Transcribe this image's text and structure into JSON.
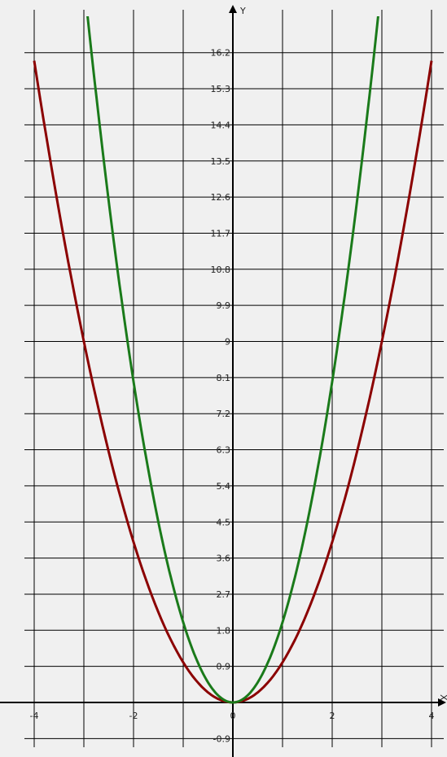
{
  "chart_data": {
    "type": "line",
    "title": "",
    "xlabel": "X",
    "ylabel": "Y",
    "xlim": [
      -4.1,
      4.2
    ],
    "ylim": [
      -1.1,
      17.2
    ],
    "grid": true,
    "x_ticks": [
      {
        "value": -4,
        "label": "-4"
      },
      {
        "value": -2,
        "label": "-2"
      },
      {
        "value": 0,
        "label": "0"
      },
      {
        "value": 2,
        "label": "2"
      },
      {
        "value": 4,
        "label": "4"
      }
    ],
    "y_ticks": [
      {
        "value": -0.9,
        "label": "-0.9"
      },
      {
        "value": 0.9,
        "label": "0.9"
      },
      {
        "value": 1.8,
        "label": "1.8"
      },
      {
        "value": 2.7,
        "label": "2.7"
      },
      {
        "value": 3.6,
        "label": "3.6"
      },
      {
        "value": 4.5,
        "label": "4.5"
      },
      {
        "value": 5.4,
        "label": "5.4"
      },
      {
        "value": 6.3,
        "label": "6.3"
      },
      {
        "value": 7.2,
        "label": "7.2"
      },
      {
        "value": 8.1,
        "label": "8.1"
      },
      {
        "value": 9,
        "label": "9"
      },
      {
        "value": 9.9,
        "label": "9.9"
      },
      {
        "value": 10.8,
        "label": "10.8"
      },
      {
        "value": 11.7,
        "label": "11.7"
      },
      {
        "value": 12.6,
        "label": "12.6"
      },
      {
        "value": 13.5,
        "label": "13.5"
      },
      {
        "value": 14.4,
        "label": "14.4"
      },
      {
        "value": 15.3,
        "label": "15.3"
      },
      {
        "value": 16.2,
        "label": "16.2"
      }
    ],
    "series": [
      {
        "color": "#8b0000",
        "x": [
          -4,
          -3.5,
          -3,
          -2.5,
          -2,
          -1.5,
          -1,
          -0.5,
          0,
          0.5,
          1,
          1.5,
          2,
          2.5,
          3,
          3.5,
          4
        ],
        "y": [
          16,
          12.25,
          9,
          6.25,
          4,
          2.25,
          1,
          0.25,
          0,
          0.25,
          1,
          2.25,
          4,
          6.25,
          9,
          12.25,
          16
        ]
      },
      {
        "color": "#1a7a1a",
        "x": [
          -3,
          -2.75,
          -2.5,
          -2.25,
          -2,
          -1.75,
          -1.5,
          -1.25,
          -1,
          -0.75,
          -0.5,
          -0.25,
          0,
          0.25,
          0.5,
          0.75,
          1,
          1.25,
          1.5,
          1.75,
          2,
          2.25,
          2.5,
          2.75,
          3
        ],
        "y": [
          18,
          15.125,
          12.5,
          10.125,
          8,
          6.125,
          4.5,
          3.125,
          2,
          1.125,
          0.5,
          0.125,
          0,
          0.125,
          0.5,
          1.125,
          2,
          3.125,
          4.5,
          6.125,
          8,
          10.125,
          12.5,
          15.125,
          18
        ]
      }
    ]
  }
}
